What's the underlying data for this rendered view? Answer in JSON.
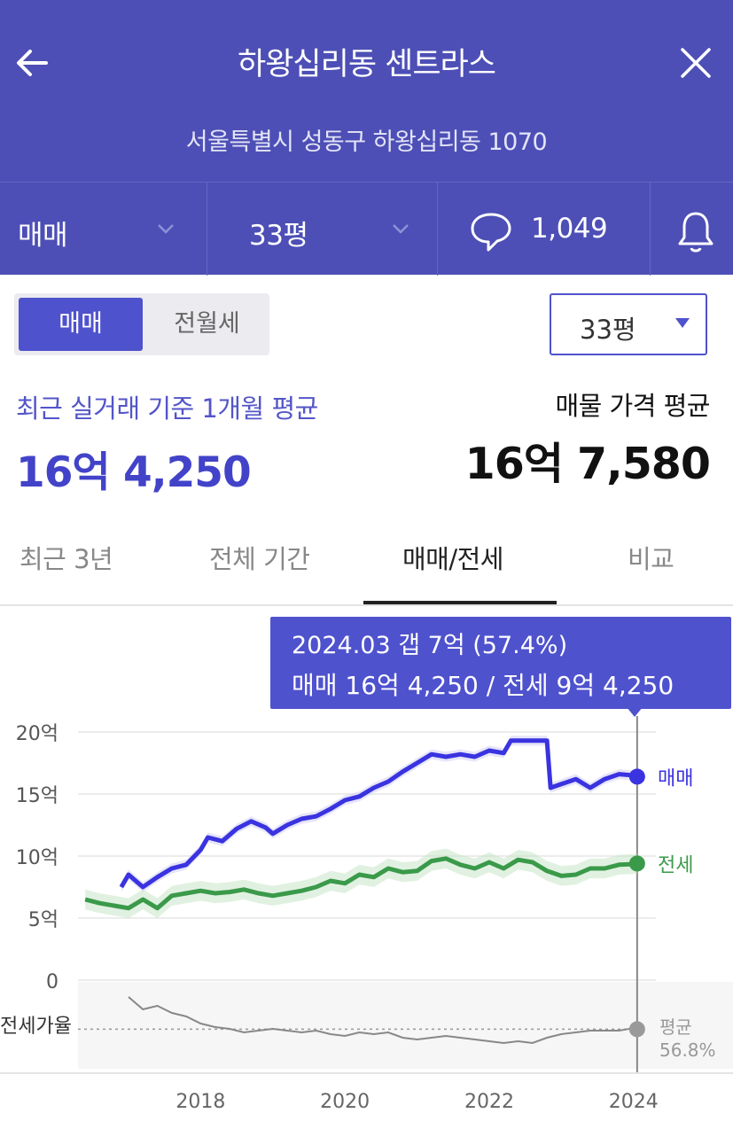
{
  "header": {
    "title": "하왕십리동 센트라스",
    "address": "서울특별시 성동구 하왕십리동 1070"
  },
  "subbar": {
    "trade_type": "매매",
    "size": "33평",
    "comment_count": "1,049"
  },
  "segment": {
    "active": "매매",
    "inactive": "전월세"
  },
  "size_select": {
    "value": "33평"
  },
  "summary": {
    "recent_label": "최근 실거래 기준 1개월 평균",
    "recent_value": "16억 4,250",
    "listing_label": "매물 가격 평균",
    "listing_value": "16억 7,580"
  },
  "tabs": [
    {
      "label": "최근 3년",
      "active": false
    },
    {
      "label": "전체 기간",
      "active": false
    },
    {
      "label": "매매/전세",
      "active": true
    },
    {
      "label": "비교",
      "active": false
    }
  ],
  "tooltip": {
    "line1": "2024.03  갭 7억 (57.4%)",
    "line2": "매매 16억 4,250 / 전세 9억 4,250"
  },
  "colors": {
    "header": "#4d4fb6",
    "accent": "#4f52cd",
    "sale": "#3a33e0",
    "jeonse": "#3a9a4a",
    "ratio": "#888888"
  },
  "chart_data": {
    "type": "line",
    "ylabels": [
      "20억",
      "15억",
      "10억",
      "5억",
      "0"
    ],
    "yticks": [
      20,
      15,
      10,
      5,
      0
    ],
    "ylim": [
      0,
      20
    ],
    "xlabels": [
      "2018",
      "2020",
      "2022",
      "2024"
    ],
    "ratio_label": "전세가율",
    "ratio_avg_label": "평균",
    "ratio_avg_value": "56.8%",
    "series": [
      {
        "name": "매매",
        "color": "#3a33e0",
        "points": [
          [
            2016.9,
            7.5
          ],
          [
            2017.0,
            8.5
          ],
          [
            2017.2,
            7.5
          ],
          [
            2017.4,
            8.3
          ],
          [
            2017.6,
            9.0
          ],
          [
            2017.8,
            9.3
          ],
          [
            2018.0,
            10.5
          ],
          [
            2018.1,
            11.5
          ],
          [
            2018.3,
            11.2
          ],
          [
            2018.5,
            12.2
          ],
          [
            2018.7,
            12.8
          ],
          [
            2018.9,
            12.3
          ],
          [
            2019.0,
            11.8
          ],
          [
            2019.2,
            12.5
          ],
          [
            2019.4,
            13.0
          ],
          [
            2019.6,
            13.2
          ],
          [
            2019.8,
            13.8
          ],
          [
            2020.0,
            14.5
          ],
          [
            2020.2,
            14.8
          ],
          [
            2020.4,
            15.5
          ],
          [
            2020.6,
            16.0
          ],
          [
            2020.8,
            16.8
          ],
          [
            2021.0,
            17.5
          ],
          [
            2021.2,
            18.2
          ],
          [
            2021.4,
            18.0
          ],
          [
            2021.6,
            18.2
          ],
          [
            2021.8,
            18.0
          ],
          [
            2022.0,
            18.5
          ],
          [
            2022.2,
            18.3
          ],
          [
            2022.3,
            19.3
          ],
          [
            2022.6,
            19.3
          ],
          [
            2022.8,
            19.3
          ],
          [
            2022.85,
            15.5
          ],
          [
            2023.0,
            15.8
          ],
          [
            2023.2,
            16.2
          ],
          [
            2023.4,
            15.5
          ],
          [
            2023.6,
            16.2
          ],
          [
            2023.8,
            16.6
          ],
          [
            2024.0,
            16.5
          ],
          [
            2024.05,
            16.4
          ]
        ]
      },
      {
        "name": "전세",
        "color": "#3a9a4a",
        "points": [
          [
            2016.4,
            6.5
          ],
          [
            2016.6,
            6.2
          ],
          [
            2016.8,
            6.0
          ],
          [
            2017.0,
            5.8
          ],
          [
            2017.2,
            6.5
          ],
          [
            2017.4,
            5.8
          ],
          [
            2017.6,
            6.8
          ],
          [
            2017.8,
            7.0
          ],
          [
            2018.0,
            7.2
          ],
          [
            2018.2,
            7.0
          ],
          [
            2018.4,
            7.1
          ],
          [
            2018.6,
            7.3
          ],
          [
            2018.8,
            7.0
          ],
          [
            2019.0,
            6.8
          ],
          [
            2019.2,
            7.0
          ],
          [
            2019.4,
            7.2
          ],
          [
            2019.6,
            7.5
          ],
          [
            2019.8,
            8.0
          ],
          [
            2020.0,
            7.8
          ],
          [
            2020.2,
            8.5
          ],
          [
            2020.4,
            8.3
          ],
          [
            2020.6,
            9.0
          ],
          [
            2020.8,
            8.7
          ],
          [
            2021.0,
            8.8
          ],
          [
            2021.2,
            9.6
          ],
          [
            2021.4,
            9.8
          ],
          [
            2021.6,
            9.3
          ],
          [
            2021.8,
            9.0
          ],
          [
            2022.0,
            9.5
          ],
          [
            2022.2,
            9.0
          ],
          [
            2022.4,
            9.7
          ],
          [
            2022.6,
            9.5
          ],
          [
            2022.8,
            8.8
          ],
          [
            2023.0,
            8.4
          ],
          [
            2023.2,
            8.5
          ],
          [
            2023.4,
            9.0
          ],
          [
            2023.6,
            9.0
          ],
          [
            2023.8,
            9.3
          ],
          [
            2024.0,
            9.35
          ],
          [
            2024.05,
            9.4
          ]
        ]
      },
      {
        "name": "전세가율",
        "color": "#888888",
        "points": [
          [
            2017.0,
            75
          ],
          [
            2017.2,
            68
          ],
          [
            2017.4,
            70
          ],
          [
            2017.6,
            66
          ],
          [
            2017.8,
            64
          ],
          [
            2018.0,
            60
          ],
          [
            2018.2,
            58
          ],
          [
            2018.4,
            57
          ],
          [
            2018.6,
            55
          ],
          [
            2018.8,
            56
          ],
          [
            2019.0,
            57
          ],
          [
            2019.2,
            56
          ],
          [
            2019.4,
            55
          ],
          [
            2019.6,
            56
          ],
          [
            2019.8,
            54
          ],
          [
            2020.0,
            53
          ],
          [
            2020.2,
            55
          ],
          [
            2020.4,
            54
          ],
          [
            2020.6,
            55
          ],
          [
            2020.8,
            52
          ],
          [
            2021.0,
            51
          ],
          [
            2021.2,
            52
          ],
          [
            2021.4,
            53
          ],
          [
            2021.6,
            52
          ],
          [
            2021.8,
            51
          ],
          [
            2022.0,
            50
          ],
          [
            2022.2,
            49
          ],
          [
            2022.4,
            50
          ],
          [
            2022.6,
            49
          ],
          [
            2022.8,
            52
          ],
          [
            2023.0,
            54
          ],
          [
            2023.2,
            55
          ],
          [
            2023.4,
            56
          ],
          [
            2023.6,
            56
          ],
          [
            2023.8,
            56
          ],
          [
            2024.0,
            57.4
          ],
          [
            2024.05,
            57.4
          ]
        ]
      }
    ],
    "highlight_x": 2024.05,
    "endpoint_labels": [
      "매매",
      "전세"
    ]
  }
}
